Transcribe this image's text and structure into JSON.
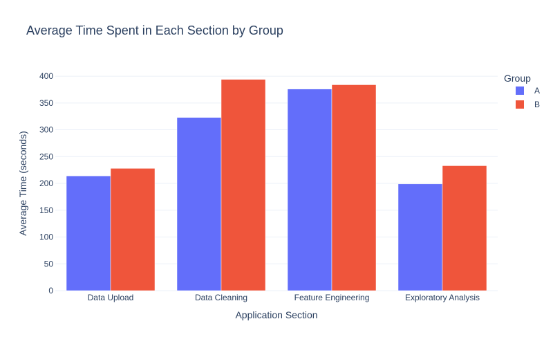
{
  "chart_data": {
    "type": "bar",
    "title": "Average Time Spent in Each Section by Group",
    "xlabel": "Application Section",
    "ylabel": "Average Time (seconds)",
    "categories": [
      "Data Upload",
      "Data Cleaning",
      "Feature Engineering",
      "Exploratory Analysis"
    ],
    "series": [
      {
        "name": "A",
        "color": "#636efa",
        "values": [
          214,
          323,
          376,
          199
        ]
      },
      {
        "name": "B",
        "color": "#ef553b",
        "values": [
          228,
          394,
          384,
          233
        ]
      }
    ],
    "ylim": [
      0,
      413
    ],
    "yticks": [
      0,
      50,
      100,
      150,
      200,
      250,
      300,
      350,
      400
    ],
    "grid": true,
    "legend": {
      "title": "Group",
      "position": "top-right"
    }
  }
}
